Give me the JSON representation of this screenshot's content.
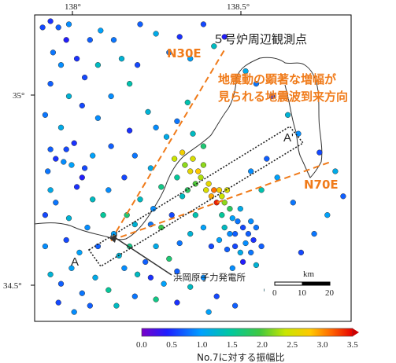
{
  "title": "５号炉周辺観測点",
  "axes": {
    "lon_ticks": [
      {
        "value": 138.0,
        "label": "138°"
      },
      {
        "value": 138.5,
        "label": "138.5°"
      }
    ],
    "lat_ticks": [
      {
        "value": 35.0,
        "label": "35°"
      },
      {
        "value": 34.5,
        "label": "34.5°"
      }
    ]
  },
  "annotations": {
    "n30e": "N30E",
    "n70e": "N70E",
    "arrival_line1": "地震動の顕著な増幅が",
    "arrival_line2": "見られる地震波到来方向",
    "label_a": "A",
    "label_a_prime": "A'",
    "plant": "浜岡原子力発電所"
  },
  "scale_bar": {
    "unit": "km",
    "ticks": [
      "0",
      "10",
      "20"
    ]
  },
  "colorbar": {
    "title": "No.7に対する振幅比",
    "ticks": [
      "0.0",
      "0.5",
      "1.0",
      "1.5",
      "2.0",
      "2.5",
      "3.0",
      "3.5"
    ],
    "min": 0.0,
    "max": 3.5
  },
  "colors": {
    "orange": "#f07b1a"
  },
  "map_extent": {
    "lon_min": 137.74,
    "lon_max": 138.94,
    "lat_min": 34.38,
    "lat_max": 35.36
  },
  "points": [
    [
      137.77,
      35.32,
      0.6
    ],
    [
      137.8,
      35.34,
      0.5
    ],
    [
      137.83,
      35.32,
      0.7
    ],
    [
      137.87,
      35.33,
      0.9
    ],
    [
      137.86,
      35.28,
      0.4
    ],
    [
      137.81,
      35.24,
      0.8
    ],
    [
      137.9,
      35.22,
      0.5
    ],
    [
      137.84,
      35.2,
      0.9
    ],
    [
      137.93,
      35.16,
      0.6
    ],
    [
      137.98,
      35.2,
      1.3
    ],
    [
      137.95,
      35.28,
      0.7
    ],
    [
      137.99,
      35.31,
      1.0
    ],
    [
      138.04,
      35.28,
      0.8
    ],
    [
      138.07,
      35.22,
      1.2
    ],
    [
      138.13,
      35.2,
      0.6
    ],
    [
      138.1,
      35.14,
      1.4
    ],
    [
      138.03,
      35.1,
      0.9
    ],
    [
      138.14,
      35.33,
      0.7
    ],
    [
      138.2,
      35.3,
      1.1
    ],
    [
      138.25,
      35.24,
      0.8
    ],
    [
      138.29,
      35.29,
      0.5
    ],
    [
      138.33,
      35.22,
      1.0
    ],
    [
      138.38,
      35.33,
      0.6
    ],
    [
      138.42,
      35.26,
      1.3
    ],
    [
      138.46,
      35.29,
      0.4
    ],
    [
      137.8,
      35.14,
      0.7
    ],
    [
      137.87,
      35.1,
      1.2
    ],
    [
      137.92,
      35.07,
      0.6
    ],
    [
      137.98,
      35.03,
      0.9
    ],
    [
      137.78,
      35.04,
      0.8
    ],
    [
      137.84,
      35.0,
      1.1
    ],
    [
      137.89,
      34.95,
      0.5
    ],
    [
      137.8,
      34.93,
      0.7
    ],
    [
      137.85,
      34.89,
      0.9
    ],
    [
      137.93,
      34.87,
      0.6
    ],
    [
      137.79,
      34.86,
      0.8
    ],
    [
      137.96,
      34.91,
      1.0
    ],
    [
      138.03,
      34.94,
      0.7
    ],
    [
      138.1,
      34.99,
      0.5
    ],
    [
      138.17,
      35.05,
      1.2
    ],
    [
      138.2,
      35.0,
      0.9
    ],
    [
      138.24,
      34.97,
      1.1
    ],
    [
      138.28,
      35.02,
      0.8
    ],
    [
      138.32,
      35.08,
      1.4
    ],
    [
      138.12,
      34.91,
      0.8
    ],
    [
      138.18,
      34.87,
      1.1
    ],
    [
      138.08,
      34.84,
      0.6
    ],
    [
      138.02,
      34.8,
      0.9
    ],
    [
      137.96,
      34.77,
      1.3
    ],
    [
      137.9,
      34.81,
      0.5
    ],
    [
      137.82,
      34.76,
      0.8
    ],
    [
      137.78,
      34.72,
      0.6
    ],
    [
      137.87,
      34.71,
      1.2
    ],
    [
      137.94,
      34.68,
      0.9
    ],
    [
      138.0,
      34.72,
      1.5
    ],
    [
      138.04,
      34.66,
      1.0
    ],
    [
      138.09,
      34.72,
      1.7
    ],
    [
      138.14,
      34.77,
      1.3
    ],
    [
      138.19,
      34.74,
      0.9
    ],
    [
      138.22,
      34.81,
      1.6
    ],
    [
      138.27,
      34.9,
      2.4
    ],
    [
      138.3,
      34.92,
      2.7
    ],
    [
      138.31,
      34.88,
      2.2
    ],
    [
      138.33,
      34.86,
      2.6
    ],
    [
      138.34,
      34.9,
      2.5
    ],
    [
      138.36,
      34.86,
      2.8
    ],
    [
      138.37,
      34.84,
      2.3
    ],
    [
      138.39,
      34.8,
      2.5
    ],
    [
      138.41,
      34.78,
      2.9
    ],
    [
      138.4,
      34.82,
      2.6
    ],
    [
      138.42,
      34.8,
      3.1
    ],
    [
      138.43,
      34.76,
      3.4
    ],
    [
      138.44,
      34.8,
      2.7
    ],
    [
      138.45,
      34.78,
      2.4
    ],
    [
      138.46,
      34.76,
      2.2
    ],
    [
      138.47,
      34.8,
      2.5
    ],
    [
      138.48,
      34.74,
      1.8
    ],
    [
      138.49,
      34.71,
      1.0
    ],
    [
      138.5,
      34.66,
      0.7
    ],
    [
      138.51,
      34.7,
      0.8
    ],
    [
      138.52,
      34.74,
      1.1
    ],
    [
      138.53,
      34.68,
      0.6
    ],
    [
      138.54,
      34.63,
      0.9
    ],
    [
      138.55,
      34.66,
      0.7
    ],
    [
      138.56,
      34.7,
      0.9
    ],
    [
      138.57,
      34.64,
      0.5
    ],
    [
      138.58,
      34.68,
      0.8
    ],
    [
      138.52,
      34.6,
      1.1
    ],
    [
      138.5,
      34.62,
      0.6
    ],
    [
      138.48,
      34.66,
      0.9
    ],
    [
      138.47,
      34.61,
      0.7
    ],
    [
      138.46,
      34.68,
      1.3
    ],
    [
      138.44,
      34.64,
      1.0
    ],
    [
      138.45,
      34.72,
      1.5
    ],
    [
      138.53,
      34.57,
      0.4
    ],
    [
      138.56,
      34.6,
      0.8
    ],
    [
      138.58,
      34.56,
      1.2
    ],
    [
      138.6,
      34.62,
      0.7
    ],
    [
      138.49,
      34.55,
      0.9
    ],
    [
      138.41,
      34.62,
      0.6
    ],
    [
      138.38,
      34.68,
      1.0
    ],
    [
      138.35,
      34.72,
      1.4
    ],
    [
      138.33,
      34.66,
      1.2
    ],
    [
      138.29,
      34.63,
      0.8
    ],
    [
      138.25,
      34.58,
      1.7
    ],
    [
      138.2,
      34.62,
      1.1
    ],
    [
      138.16,
      34.57,
      0.7
    ],
    [
      138.13,
      34.53,
      1.3
    ],
    [
      138.08,
      34.55,
      0.9
    ],
    [
      138.1,
      34.62,
      1.6
    ],
    [
      138.06,
      34.59,
      1.2
    ],
    [
      138.18,
      34.52,
      0.5
    ],
    [
      138.23,
      34.5,
      1.0
    ],
    [
      138.28,
      34.54,
      0.7
    ],
    [
      138.33,
      34.49,
      1.3
    ],
    [
      138.38,
      34.52,
      0.9
    ],
    [
      138.43,
      34.46,
      0.6
    ],
    [
      138.02,
      34.48,
      1.5
    ],
    [
      137.97,
      34.52,
      1.1
    ],
    [
      137.92,
      34.47,
      0.8
    ],
    [
      137.88,
      34.55,
      1.0
    ],
    [
      137.84,
      34.5,
      0.7
    ],
    [
      137.8,
      34.53,
      1.2
    ],
    [
      137.83,
      34.44,
      0.6
    ],
    [
      137.89,
      34.41,
      0.9
    ],
    [
      137.95,
      34.43,
      0.7
    ],
    [
      138.05,
      34.43,
      1.3
    ],
    [
      138.12,
      34.46,
      0.8
    ],
    [
      138.2,
      34.45,
      1.6
    ],
    [
      138.28,
      34.44,
      0.5
    ],
    [
      138.4,
      34.41,
      1.0
    ],
    [
      138.5,
      34.43,
      0.7
    ],
    [
      138.62,
      34.48,
      1.2
    ],
    [
      138.7,
      34.52,
      0.9
    ],
    [
      138.75,
      34.6,
      0.6
    ],
    [
      138.8,
      34.66,
      0.8
    ],
    [
      138.85,
      34.72,
      1.0
    ],
    [
      138.91,
      34.78,
      0.7
    ],
    [
      138.88,
      34.86,
      1.1
    ],
    [
      138.82,
      34.92,
      0.6
    ],
    [
      138.74,
      34.98,
      0.9
    ],
    [
      138.7,
      35.04,
      1.2
    ],
    [
      138.64,
      35.1,
      0.5
    ],
    [
      138.58,
      35.14,
      0.8
    ],
    [
      138.54,
      35.18,
      1.1
    ],
    [
      138.62,
      34.9,
      0.7
    ],
    [
      138.66,
      34.84,
      1.0
    ],
    [
      138.72,
      34.76,
      0.8
    ],
    [
      138.6,
      34.8,
      1.4
    ],
    [
      138.56,
      34.86,
      0.9
    ],
    [
      138.3,
      34.78,
      1.3
    ],
    [
      138.26,
      34.72,
      0.6
    ],
    [
      138.22,
      34.68,
      1.9
    ],
    [
      138.18,
      34.69,
      0.8
    ],
    [
      138.12,
      34.69,
      1.2
    ],
    [
      137.98,
      34.62,
      0.7
    ],
    [
      137.91,
      34.6,
      1.0
    ],
    [
      137.86,
      34.64,
      0.6
    ],
    [
      137.78,
      34.62,
      0.9
    ],
    [
      137.8,
      34.8,
      1.1
    ],
    [
      137.88,
      34.88,
      1.0
    ],
    [
      137.92,
      34.84,
      0.4
    ],
    [
      137.86,
      34.93,
      0.6
    ],
    [
      137.82,
      34.9,
      0.5
    ],
    [
      138.34,
      34.98,
      1.3
    ],
    [
      138.38,
      34.94,
      1.7
    ],
    [
      138.35,
      34.82,
      2.0
    ],
    [
      138.38,
      34.88,
      2.2
    ],
    [
      138.32,
      34.8,
      1.8
    ],
    [
      138.28,
      34.84,
      1.5
    ]
  ]
}
